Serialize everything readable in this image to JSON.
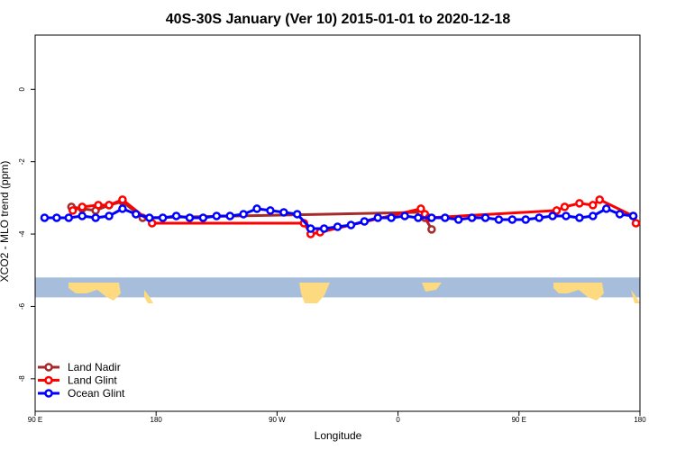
{
  "chart_data": {
    "type": "line",
    "title": "40S-30S January (Ver 10)   2015-01-01 to 2020-12-18",
    "xlabel": "Longitude",
    "ylabel": "XCO2 - MLO trend (ppm)",
    "xlim": [
      90,
      540
    ],
    "ylim": [
      -8.9,
      1.5
    ],
    "x_ticks": [
      {
        "value": 90,
        "label": "90 E"
      },
      {
        "value": 180,
        "label": "180"
      },
      {
        "value": 270,
        "label": "90 W"
      },
      {
        "value": 360,
        "label": "0"
      },
      {
        "value": 450,
        "label": "90 E"
      },
      {
        "value": 540,
        "label": "180"
      }
    ],
    "y_ticks": [
      {
        "value": 0,
        "label": "0"
      },
      {
        "value": -2,
        "label": "-2"
      },
      {
        "value": -4,
        "label": "-4"
      },
      {
        "value": -6,
        "label": "-6"
      },
      {
        "value": -8,
        "label": "-8"
      }
    ],
    "map_strip": {
      "ymin": -5.75,
      "ymax": -5.2,
      "ocean_color": "#a6bddb",
      "land_color": "#fdd97f"
    },
    "legend": {
      "position": "bottom-left"
    },
    "series": [
      {
        "name": "Land Nadir",
        "color": "#a52a2a",
        "x": [
          117,
          125,
          135,
          145,
          155,
          170,
          377,
          380,
          385
        ],
        "y": [
          -3.25,
          -3.3,
          -3.35,
          -3.2,
          -3.1,
          -3.55,
          -3.4,
          -3.55,
          -3.87
        ]
      },
      {
        "name": "Land Glint",
        "color": "#ff0000",
        "x": [
          118,
          125,
          137,
          145,
          155,
          177,
          290,
          295,
          302,
          377,
          380,
          383,
          478,
          484,
          495,
          505,
          510,
          535,
          537
        ],
        "y": [
          -3.35,
          -3.25,
          -3.2,
          -3.2,
          -3.05,
          -3.7,
          -3.7,
          -4.0,
          -3.95,
          -3.3,
          -3.45,
          -3.55,
          -3.35,
          -3.25,
          -3.15,
          -3.2,
          -3.05,
          -3.5,
          -3.7
        ]
      },
      {
        "name": "Ocean Glint",
        "color": "#0000ff",
        "x": [
          97,
          106,
          115,
          125,
          135,
          145,
          155,
          165,
          175,
          185,
          195,
          205,
          215,
          225,
          235,
          245,
          255,
          265,
          275,
          285,
          295,
          305,
          315,
          325,
          335,
          345,
          355,
          365,
          375,
          385,
          395,
          405,
          415,
          425,
          435,
          445,
          455,
          465,
          475,
          485,
          495,
          505,
          515,
          525,
          535
        ],
        "y": [
          -3.55,
          -3.55,
          -3.55,
          -3.5,
          -3.55,
          -3.5,
          -3.3,
          -3.45,
          -3.55,
          -3.55,
          -3.5,
          -3.55,
          -3.55,
          -3.5,
          -3.5,
          -3.45,
          -3.3,
          -3.35,
          -3.4,
          -3.45,
          -3.85,
          -3.85,
          -3.8,
          -3.75,
          -3.65,
          -3.55,
          -3.55,
          -3.5,
          -3.55,
          -3.55,
          -3.55,
          -3.6,
          -3.55,
          -3.55,
          -3.6,
          -3.6,
          -3.6,
          -3.55,
          -3.5,
          -3.5,
          -3.55,
          -3.5,
          -3.3,
          -3.45,
          -3.5
        ]
      }
    ]
  }
}
